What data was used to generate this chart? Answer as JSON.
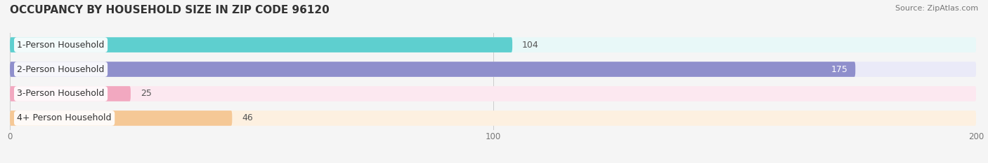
{
  "title": "OCCUPANCY BY HOUSEHOLD SIZE IN ZIP CODE 96120",
  "source": "Source: ZipAtlas.com",
  "categories": [
    "1-Person Household",
    "2-Person Household",
    "3-Person Household",
    "4+ Person Household"
  ],
  "values": [
    104,
    175,
    25,
    46
  ],
  "bar_colors": [
    "#5ECFCF",
    "#8F8FCC",
    "#F2A8C0",
    "#F5C896"
  ],
  "bar_bg_colors": [
    "#E8F8F8",
    "#EAEAF8",
    "#FCE8F0",
    "#FDF0E0"
  ],
  "value_inside": [
    false,
    true,
    false,
    false
  ],
  "xlim": [
    0,
    200
  ],
  "xticks": [
    0,
    100,
    200
  ],
  "figsize": [
    14.06,
    2.33
  ],
  "dpi": 100,
  "title_fontsize": 11,
  "bar_height": 0.62,
  "label_fontsize": 9,
  "value_fontsize": 9,
  "background_color": "#f5f5f5",
  "bar_gap": 0.15
}
